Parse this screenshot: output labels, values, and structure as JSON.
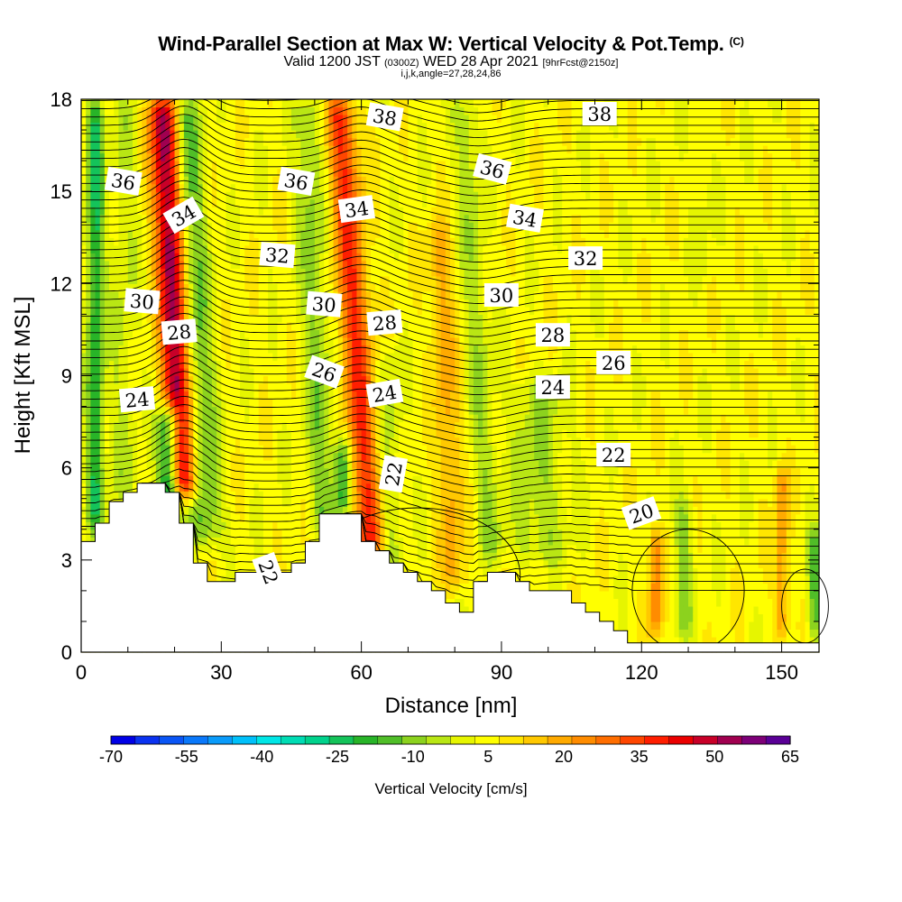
{
  "titles": {
    "main": "Wind-Parallel Section at Max W: Vertical Velocity & Pot.Temp.",
    "copyright": "(C)",
    "valid_prefix": "Valid 1200 JST",
    "valid_utc": "(0300Z)",
    "valid_date": "WED 28 Apr 2021",
    "valid_run": "[9hrFcst@2150z]",
    "indices": "i,j,k,angle=27,28,24,86"
  },
  "chart_data": {
    "type": "heatmap",
    "title": "Wind-Parallel Section at Max W: Vertical Velocity & Pot.Temp.",
    "xlabel": "Distance [nm]",
    "ylabel": "Height [Kft MSL]",
    "xlim": [
      0,
      158
    ],
    "ylim": [
      0,
      18
    ],
    "xticks": [
      0,
      30,
      60,
      90,
      120,
      150
    ],
    "yticks": [
      0,
      3,
      6,
      9,
      12,
      15,
      18
    ],
    "colorbar": {
      "title": "Vertical Velocity [cm/s]",
      "tick_labels": [
        "-70",
        "-55",
        "-40",
        "-25",
        "-10",
        "5",
        "20",
        "35",
        "50",
        "65"
      ],
      "levels": [
        -70,
        -65,
        -60,
        -55,
        -50,
        -45,
        -40,
        -35,
        -30,
        -25,
        -20,
        -15,
        -10,
        -5,
        0,
        5,
        10,
        15,
        20,
        25,
        30,
        35,
        40,
        45,
        50,
        55,
        60,
        65
      ],
      "colors": [
        "#0000e6",
        "#0a32f0",
        "#0a55f5",
        "#0a78fa",
        "#0a9bfa",
        "#00c0fa",
        "#00e6e6",
        "#00dcb4",
        "#00d28c",
        "#14c35a",
        "#28b428",
        "#50be28",
        "#8cd21e",
        "#b9e614",
        "#e6f500",
        "#ffff00",
        "#ffe600",
        "#ffc800",
        "#ffaa00",
        "#ff8c00",
        "#ff6e00",
        "#ff4600",
        "#ff1e00",
        "#eb0000",
        "#c80028",
        "#a00050",
        "#7d0078",
        "#5a0096"
      ]
    },
    "vertical_velocity_cm_s": {
      "background": 5,
      "features": [
        {
          "x_base": 22,
          "z_bottom": 5.0,
          "z_top": 18,
          "tilt_nm_per_kft": -0.35,
          "width_nm": 3.0,
          "peak": 55
        },
        {
          "x_base": 27,
          "z_bottom": 3.5,
          "z_top": 18,
          "tilt_nm_per_kft": -0.35,
          "width_nm": 3.5,
          "peak": -20
        },
        {
          "x_base": 19,
          "z_bottom": 4.5,
          "z_top": 8,
          "tilt_nm_per_kft": 0.0,
          "width_nm": 2.5,
          "peak": -45
        },
        {
          "x_base": 3,
          "z_bottom": 4.0,
          "z_top": 18,
          "tilt_nm_per_kft": 0.0,
          "width_nm": 1.8,
          "peak": -28
        },
        {
          "x_base": 9,
          "z_bottom": 5.0,
          "z_top": 18,
          "tilt_nm_per_kft": 0.0,
          "width_nm": 3.0,
          "peak": -8
        },
        {
          "x_base": 62,
          "z_bottom": 3.0,
          "z_top": 18,
          "tilt_nm_per_kft": -0.45,
          "width_nm": 3.5,
          "peak": 32
        },
        {
          "x_base": 52,
          "z_bottom": 4.0,
          "z_top": 18,
          "tilt_nm_per_kft": -0.25,
          "width_nm": 3.0,
          "peak": -15
        },
        {
          "x_base": 56,
          "z_bottom": 4.5,
          "z_top": 7,
          "tilt_nm_per_kft": 0.0,
          "width_nm": 2.0,
          "peak": -25
        },
        {
          "x_base": 66,
          "z_bottom": 2.5,
          "z_top": 10,
          "tilt_nm_per_kft": 0.0,
          "width_nm": 2.5,
          "peak": -10
        },
        {
          "x_base": 88,
          "z_bottom": 3.0,
          "z_top": 18,
          "tilt_nm_per_kft": -0.4,
          "width_nm": 2.5,
          "peak": -12
        },
        {
          "x_base": 80,
          "z_bottom": 2.0,
          "z_top": 14,
          "tilt_nm_per_kft": -0.3,
          "width_nm": 2.5,
          "peak": 15
        },
        {
          "x_base": 98,
          "z_bottom": 3.0,
          "z_top": 9,
          "tilt_nm_per_kft": 0.0,
          "width_nm": 6.0,
          "peak": -12
        },
        {
          "x_base": 129,
          "z_bottom": 0.5,
          "z_top": 5,
          "tilt_nm_per_kft": 0.0,
          "width_nm": 2.0,
          "peak": -14
        },
        {
          "x_base": 123,
          "z_bottom": 0.5,
          "z_top": 4,
          "tilt_nm_per_kft": 0.0,
          "width_nm": 1.5,
          "peak": 22
        },
        {
          "x_base": 150,
          "z_bottom": 0.5,
          "z_top": 6,
          "tilt_nm_per_kft": 0.0,
          "width_nm": 1.5,
          "peak": 18
        },
        {
          "x_base": 157,
          "z_bottom": 0.5,
          "z_top": 4,
          "tilt_nm_per_kft": 0.0,
          "width_nm": 1.5,
          "peak": -20
        },
        {
          "x_base": 133,
          "z_bottom": 12.0,
          "z_top": 17,
          "tilt_nm_per_kft": 0.0,
          "width_nm": 2.0,
          "peak": -5
        }
      ]
    },
    "terrain_kft": {
      "x": [
        0,
        3,
        6,
        9,
        12,
        15,
        18,
        21,
        24,
        27,
        30,
        33,
        36,
        39,
        42,
        45,
        48,
        51,
        54,
        57,
        60,
        63,
        66,
        69,
        72,
        75,
        78,
        81,
        84,
        87,
        90,
        93,
        96,
        99,
        102,
        105,
        108,
        111,
        114,
        117,
        120,
        123,
        126,
        129,
        132,
        135,
        138,
        141,
        144,
        147,
        150,
        153,
        156,
        158
      ],
      "heights": [
        3.6,
        4.2,
        4.9,
        5.2,
        5.5,
        5.5,
        5.2,
        4.2,
        2.9,
        2.3,
        2.3,
        2.6,
        2.6,
        2.6,
        2.6,
        2.9,
        3.6,
        4.5,
        4.5,
        4.5,
        3.6,
        3.3,
        2.9,
        2.6,
        2.3,
        2.0,
        1.6,
        1.3,
        2.3,
        2.6,
        2.6,
        2.3,
        2.0,
        2.0,
        2.0,
        1.6,
        1.3,
        1.0,
        0.7,
        0.3,
        0.3,
        0.3,
        0.3,
        0.3,
        0.3,
        0.3,
        0.3,
        0.3,
        0.3,
        0.3,
        0.3,
        0.3,
        0.3,
        0.3
      ]
    },
    "potential_temperature_contours": {
      "labels": [
        {
          "text": "36",
          "x": 9,
          "y": 15.3,
          "angle": 10
        },
        {
          "text": "34",
          "x": 22,
          "y": 14.2,
          "angle": -30
        },
        {
          "text": "32",
          "x": 42,
          "y": 12.9,
          "angle": 5
        },
        {
          "text": "30",
          "x": 13,
          "y": 11.4,
          "angle": 5
        },
        {
          "text": "28",
          "x": 21,
          "y": 10.4,
          "angle": -5
        },
        {
          "text": "24",
          "x": 12,
          "y": 8.2,
          "angle": -5
        },
        {
          "text": "36",
          "x": 46,
          "y": 15.3,
          "angle": 10
        },
        {
          "text": "34",
          "x": 59,
          "y": 14.4,
          "angle": -8
        },
        {
          "text": "30",
          "x": 52,
          "y": 11.3,
          "angle": 5
        },
        {
          "text": "26",
          "x": 52,
          "y": 9.1,
          "angle": 20
        },
        {
          "text": "28",
          "x": 65,
          "y": 10.7,
          "angle": -5
        },
        {
          "text": "24",
          "x": 65,
          "y": 8.4,
          "angle": -10
        },
        {
          "text": "22",
          "x": 67,
          "y": 5.8,
          "angle": -80
        },
        {
          "text": "38",
          "x": 65,
          "y": 17.4,
          "angle": 10
        },
        {
          "text": "36",
          "x": 88,
          "y": 15.7,
          "angle": 15
        },
        {
          "text": "34",
          "x": 95,
          "y": 14.1,
          "angle": 10
        },
        {
          "text": "32",
          "x": 108,
          "y": 12.8,
          "angle": 0
        },
        {
          "text": "30",
          "x": 90,
          "y": 11.6,
          "angle": 0
        },
        {
          "text": "28",
          "x": 101,
          "y": 10.3,
          "angle": 0
        },
        {
          "text": "26",
          "x": 114,
          "y": 9.4,
          "angle": 0
        },
        {
          "text": "24",
          "x": 101,
          "y": 8.6,
          "angle": 0
        },
        {
          "text": "22",
          "x": 114,
          "y": 6.4,
          "angle": 0
        },
        {
          "text": "20",
          "x": 120,
          "y": 4.5,
          "angle": -20
        },
        {
          "text": "38",
          "x": 111,
          "y": 17.5,
          "angle": 0
        },
        {
          "text": "22",
          "x": 40,
          "y": 2.6,
          "angle": 70
        }
      ]
    }
  }
}
